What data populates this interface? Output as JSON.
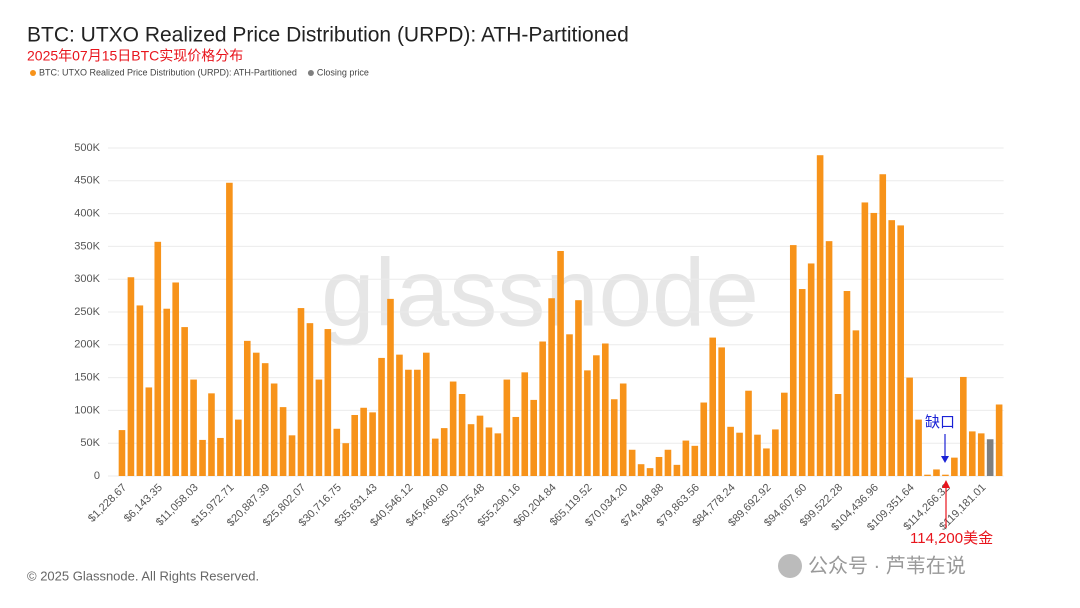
{
  "chart_data": {
    "type": "bar",
    "title": "BTC: UTXO Realized Price Distribution (URPD): ATH-Partitioned",
    "subtitle": "2025年07月15日BTC实现价格分布",
    "footer": "© 2025 Glassnode. All Rights Reserved.",
    "watermark": "glassnode",
    "wechat": "公众号 · 芦苇在说",
    "annotations": [
      "缺口",
      "114,200美金"
    ],
    "categories": [
      "$1,228.67",
      null,
      null,
      null,
      "$6,143.35",
      null,
      null,
      null,
      "$11,058.03",
      null,
      null,
      null,
      "$15,972.71",
      null,
      null,
      null,
      "$20,887.39",
      null,
      null,
      null,
      "$25,802.07",
      null,
      null,
      null,
      "$30,716.75",
      null,
      null,
      null,
      "$35,631.43",
      null,
      null,
      null,
      "$40,546.12",
      null,
      null,
      null,
      "$45,460.80",
      null,
      null,
      null,
      "$50,375.48",
      null,
      null,
      null,
      "$55,290.16",
      null,
      null,
      null,
      "$60,204.84",
      null,
      null,
      null,
      "$65,119.52",
      null,
      null,
      null,
      "$70,034.20",
      null,
      null,
      null,
      "$74,948.88",
      null,
      null,
      null,
      "$79,863.56",
      null,
      null,
      null,
      "$84,778.24",
      null,
      null,
      null,
      "$89,692.92",
      null,
      null,
      null,
      "$94,607.60",
      null,
      null,
      null,
      "$99,522.28",
      null,
      null,
      null,
      "$104,436.96",
      null,
      null,
      null,
      "$109,351.64",
      null,
      null,
      null,
      "$114,266.32",
      null,
      null,
      null,
      "$119,181.01",
      null,
      null
    ],
    "series": [
      {
        "name": "BTC: UTXO Realized Price Distribution (URPD): ATH-Partitioned",
        "color": "#f7931a",
        "values": [
          70000,
          303000,
          260000,
          135000,
          357000,
          255000,
          295000,
          227000,
          147000,
          55000,
          126000,
          58000,
          447000,
          86000,
          206000,
          188000,
          172000,
          141000,
          105000,
          62000,
          256000,
          233000,
          147000,
          224000,
          72000,
          50000,
          93000,
          104000,
          97000,
          180000,
          270000,
          185000,
          162000,
          162000,
          188000,
          57000,
          73000,
          144000,
          125000,
          79000,
          92000,
          74000,
          65000,
          147000,
          90000,
          158000,
          116000,
          205000,
          271000,
          343000,
          216000,
          268000,
          161000,
          184000,
          202000,
          117000,
          141000,
          40000,
          18000,
          12000,
          29000,
          40000,
          17000,
          54000,
          46000,
          112000,
          211000,
          196000,
          75000,
          66000,
          130000,
          63000,
          42000,
          71000,
          127000,
          352000,
          285000,
          324000,
          489000,
          358000,
          125000,
          282000,
          222000,
          417000,
          401000,
          460000,
          390000,
          382000,
          150000,
          86000,
          2000,
          10000,
          2000,
          28000,
          151000,
          68000,
          65000,
          null,
          109000
        ]
      },
      {
        "name": "Closing price",
        "color": "#7f7f7f",
        "values": [
          null,
          null,
          null,
          null,
          null,
          null,
          null,
          null,
          null,
          null,
          null,
          null,
          null,
          null,
          null,
          null,
          null,
          null,
          null,
          null,
          null,
          null,
          null,
          null,
          null,
          null,
          null,
          null,
          null,
          null,
          null,
          null,
          null,
          null,
          null,
          null,
          null,
          null,
          null,
          null,
          null,
          null,
          null,
          null,
          null,
          null,
          null,
          null,
          null,
          null,
          null,
          null,
          null,
          null,
          null,
          null,
          null,
          null,
          null,
          null,
          null,
          null,
          null,
          null,
          null,
          null,
          null,
          null,
          null,
          null,
          null,
          null,
          null,
          null,
          null,
          null,
          null,
          null,
          null,
          null,
          null,
          null,
          null,
          null,
          null,
          null,
          null,
          null,
          null,
          null,
          null,
          null,
          null,
          null,
          null,
          null,
          null,
          56000,
          null
        ]
      }
    ],
    "ylim": [
      0,
      500000
    ],
    "yticks": [
      0,
      {
        "value": 50000,
        "label": "50K"
      },
      {
        "value": 100000,
        "label": "100K"
      },
      {
        "value": 150000,
        "label": "150K"
      },
      {
        "value": 200000,
        "label": "200K"
      },
      {
        "value": 250000,
        "label": "250K"
      },
      {
        "value": 300000,
        "label": "300K"
      },
      {
        "value": 350000,
        "label": "350K"
      },
      {
        "value": 400000,
        "label": "400K"
      },
      {
        "value": 450000,
        "label": "450K"
      },
      {
        "value": 500000,
        "label": "500K"
      }
    ],
    "grid": true
  }
}
